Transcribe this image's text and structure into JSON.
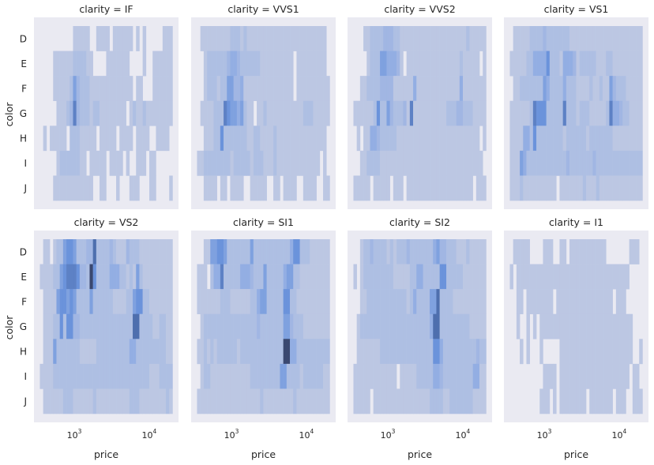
{
  "chart_data": {
    "type": "heatmap",
    "subtype": "faceted 2D histogram",
    "facet_variable": "clarity",
    "xlabel": "price",
    "ylabel": "color",
    "x_scale": "log",
    "xlim": [
      270,
      22900
    ],
    "x_bin_log10_range": [
      2.51,
      4.28
    ],
    "x_bins": 40,
    "x_ticks": [
      {
        "value": 1000,
        "base": "10",
        "exp": "3"
      },
      {
        "value": 10000,
        "base": "10",
        "exp": "4"
      }
    ],
    "y_categories": [
      "D",
      "E",
      "F",
      "G",
      "H",
      "I",
      "J"
    ],
    "value_encoding": "relative density per bin, 0 = empty, 1-9 = light to dark",
    "grid": false,
    "background": "#eaeaf2",
    "colors": [
      "#bcc7e3",
      "#93aee3",
      "#6b93db",
      "#4e6fae",
      "#3a4870"
    ],
    "facets": [
      {
        "title": "clarity = IF",
        "density": {
          "D": "0000000000111110011110111111010100000111",
          "E": "0000111111222211000011111110000100111111",
          "F": "0000111112532221111111111111011000111111",
          "G": "0000011123732221221111111101211211111111",
          "H": "0101111102221111101111101111011110011110",
          "I": "0000012222221101111101111010011101100000",
          "J": "0000111111111111001100010001110001100001"
        }
      },
      {
        "title": "clarity = VVS1",
        "density": {
          "D": "0111111111222121111111111111111111111110",
          "E": "0012222223443222222111111111101111111110",
          "F": "0012221225533411111111111111101111111111",
          "G": "0111122276554521101121111111111122211111",
          "H": "0011122622222221122111121111111111111110",
          "I": "1122222222122222122211121111111111111010",
          "J": "0011110110111100111110011011110011110011"
        }
      },
      {
        "title": "clarity = VVS2",
        "density": {
          "D": "0001122223332211111111111111111111211111",
          "E": "0000122255444310111111111111111121111101",
          "F": "0011222233331111114111111111111141111111",
          "G": "1111112622532223171111111111222332221111",
          "H": "0101144322222111111111111111111111111101",
          "I": "0011222211111111111111111111111111111110",
          "J": "1111101111101110111111111111111111110111"
        }
      },
      {
        "title": "clarity = VS1",
        "density": {
          "D": "0111112222322222221111111111111111111111",
          "E": "1111122444462221444312222211122111111111",
          "F": "0112222222542222422211112112115322211111",
          "G": "1111112766622222722212221111127443221111",
          "H": "1111442622222222122222212222222111111111",
          "I": "1115422222222222232222222322222222222222",
          "J": "1112111111111101111111211121111111111111"
        }
      },
      {
        "title": "clarity = VS2",
        "density": {
          "D": "0110122566522233822223211132221111111111",
          "E": "1111225677763329622224442212152111111111",
          "F": "0111156656522225222222111122566221111111",
          "G": "0111226266332222222222222222882222112211",
          "H": "0111522222221111122222222224422222222211",
          "I": "1111222222222222222222222222222221112222",
          "J": "0111111222111111211111111112221111111121"
        }
      },
      {
        "title": "clarity = SI1",
        "density": {
          "D": "0011556652222222522222222222466222111111",
          "E": "1110244722222444322252222245522111111111",
          "F": "1111111222111111224552222266221111111111",
          "G": "0122222222222222223222222255322211111111",
          "H": "1121212222221222222222222299442222222222",
          "I": "0122111111111111222222222552222122222211",
          "J": "1111111111111111111211111111121111111111"
        }
      },
      {
        "title": "clarity = SI2",
        "density": {
          "D": "0012232222121222322222224533222111211111",
          "E": "1012222222221111122442222266222221111111",
          "F": "0011222222222222124222255822221111111111",
          "G": "0122222222222222222222248822222222211111",
          "H": "0111111122222222222222226642222222222322",
          "I": "1111111111111011111222224432222222224411",
          "J": "1111101111111111111111122221122222221111"
        }
      },
      {
        "title": "clarity = I1",
        "density": {
          "D": "0111110000111001101111111111100000001110",
          "E": "1011111111111111111111111111111111110000",
          "F": "0011011111111011111111111111111011100000",
          "G": "0010010101111111111111111111111111111000",
          "H": "0001010001000001111111111111111111111001",
          "I": "0000000000111101111111111111111111110110",
          "J": "0000000001110101111111101111111011100111"
        }
      }
    ]
  }
}
